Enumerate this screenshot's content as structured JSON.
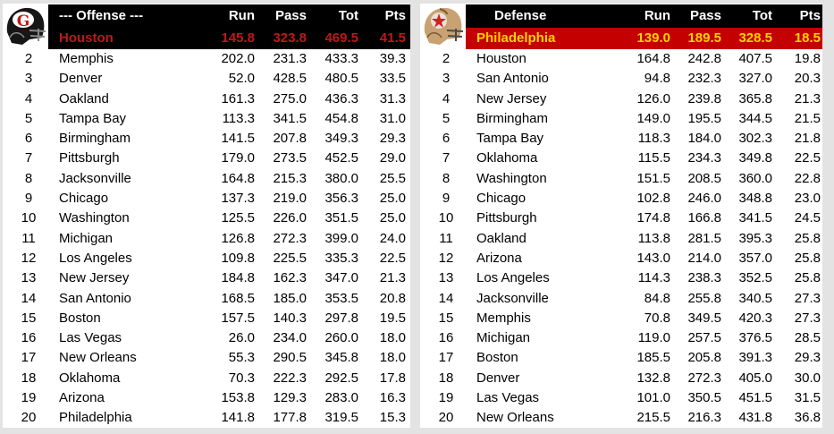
{
  "offense": {
    "header": {
      "title": "--- Offense ---",
      "run": "Run",
      "pass": "Pass",
      "tot": "Tot",
      "pts": "Pts"
    },
    "logo": {
      "icon": "gamblers-helmet-icon",
      "letter": "G",
      "color": "#c01818"
    },
    "leader": {
      "team": "Houston",
      "run": "145.8",
      "pass": "323.8",
      "tot": "469.5",
      "pts": "41.5"
    },
    "rows": [
      {
        "rank": "2",
        "team": "Memphis",
        "run": "202.0",
        "pass": "231.3",
        "tot": "433.3",
        "pts": "39.3"
      },
      {
        "rank": "3",
        "team": "Denver",
        "run": "52.0",
        "pass": "428.5",
        "tot": "480.5",
        "pts": "33.5"
      },
      {
        "rank": "4",
        "team": "Oakland",
        "run": "161.3",
        "pass": "275.0",
        "tot": "436.3",
        "pts": "31.3"
      },
      {
        "rank": "5",
        "team": "Tampa Bay",
        "run": "113.3",
        "pass": "341.5",
        "tot": "454.8",
        "pts": "31.0"
      },
      {
        "rank": "6",
        "team": "Birmingham",
        "run": "141.5",
        "pass": "207.8",
        "tot": "349.3",
        "pts": "29.3"
      },
      {
        "rank": "7",
        "team": "Pittsburgh",
        "run": "179.0",
        "pass": "273.5",
        "tot": "452.5",
        "pts": "29.0"
      },
      {
        "rank": "8",
        "team": "Jacksonville",
        "run": "164.8",
        "pass": "215.3",
        "tot": "380.0",
        "pts": "25.5"
      },
      {
        "rank": "9",
        "team": "Chicago",
        "run": "137.3",
        "pass": "219.0",
        "tot": "356.3",
        "pts": "25.0"
      },
      {
        "rank": "10",
        "team": "Washington",
        "run": "125.5",
        "pass": "226.0",
        "tot": "351.5",
        "pts": "25.0"
      },
      {
        "rank": "11",
        "team": "Michigan",
        "run": "126.8",
        "pass": "272.3",
        "tot": "399.0",
        "pts": "24.0"
      },
      {
        "rank": "12",
        "team": "Los Angeles",
        "run": "109.8",
        "pass": "225.5",
        "tot": "335.3",
        "pts": "22.5"
      },
      {
        "rank": "13",
        "team": "New Jersey",
        "run": "184.8",
        "pass": "162.3",
        "tot": "347.0",
        "pts": "21.3"
      },
      {
        "rank": "14",
        "team": "San Antonio",
        "run": "168.5",
        "pass": "185.0",
        "tot": "353.5",
        "pts": "20.8"
      },
      {
        "rank": "15",
        "team": "Boston",
        "run": "157.5",
        "pass": "140.3",
        "tot": "297.8",
        "pts": "19.5"
      },
      {
        "rank": "16",
        "team": "Las Vegas",
        "run": "26.0",
        "pass": "234.0",
        "tot": "260.0",
        "pts": "18.0"
      },
      {
        "rank": "17",
        "team": "New Orleans",
        "run": "55.3",
        "pass": "290.5",
        "tot": "345.8",
        "pts": "18.0"
      },
      {
        "rank": "18",
        "team": "Oklahoma",
        "run": "70.3",
        "pass": "222.3",
        "tot": "292.5",
        "pts": "17.8"
      },
      {
        "rank": "19",
        "team": "Arizona",
        "run": "153.8",
        "pass": "129.3",
        "tot": "283.0",
        "pts": "16.3"
      },
      {
        "rank": "20",
        "team": "Philadelphia",
        "run": "141.8",
        "pass": "177.8",
        "tot": "319.5",
        "pts": "15.3"
      }
    ]
  },
  "defense": {
    "header": {
      "title": "Defense",
      "run": "Run",
      "pass": "Pass",
      "tot": "Tot",
      "pts": "Pts"
    },
    "logo": {
      "icon": "stars-helmet-icon",
      "color": "#d42020"
    },
    "leader": {
      "team": "Philadelphia",
      "run": "139.0",
      "pass": "189.5",
      "tot": "328.5",
      "pts": "18.5"
    },
    "rows": [
      {
        "rank": "2",
        "team": "Houston",
        "run": "164.8",
        "pass": "242.8",
        "tot": "407.5",
        "pts": "19.8"
      },
      {
        "rank": "3",
        "team": "San Antonio",
        "run": "94.8",
        "pass": "232.3",
        "tot": "327.0",
        "pts": "20.3"
      },
      {
        "rank": "4",
        "team": "New Jersey",
        "run": "126.0",
        "pass": "239.8",
        "tot": "365.8",
        "pts": "21.3"
      },
      {
        "rank": "5",
        "team": "Birmingham",
        "run": "149.0",
        "pass": "195.5",
        "tot": "344.5",
        "pts": "21.5"
      },
      {
        "rank": "6",
        "team": "Tampa Bay",
        "run": "118.3",
        "pass": "184.0",
        "tot": "302.3",
        "pts": "21.8"
      },
      {
        "rank": "7",
        "team": "Oklahoma",
        "run": "115.5",
        "pass": "234.3",
        "tot": "349.8",
        "pts": "22.5"
      },
      {
        "rank": "8",
        "team": "Washington",
        "run": "151.5",
        "pass": "208.5",
        "tot": "360.0",
        "pts": "22.8"
      },
      {
        "rank": "9",
        "team": "Chicago",
        "run": "102.8",
        "pass": "246.0",
        "tot": "348.8",
        "pts": "23.0"
      },
      {
        "rank": "10",
        "team": "Pittsburgh",
        "run": "174.8",
        "pass": "166.8",
        "tot": "341.5",
        "pts": "24.5"
      },
      {
        "rank": "11",
        "team": "Oakland",
        "run": "113.8",
        "pass": "281.5",
        "tot": "395.3",
        "pts": "25.8"
      },
      {
        "rank": "12",
        "team": "Arizona",
        "run": "143.0",
        "pass": "214.0",
        "tot": "357.0",
        "pts": "25.8"
      },
      {
        "rank": "13",
        "team": "Los Angeles",
        "run": "114.3",
        "pass": "238.3",
        "tot": "352.5",
        "pts": "25.8"
      },
      {
        "rank": "14",
        "team": "Jacksonville",
        "run": "84.8",
        "pass": "255.8",
        "tot": "340.5",
        "pts": "27.3"
      },
      {
        "rank": "15",
        "team": "Memphis",
        "run": "70.8",
        "pass": "349.5",
        "tot": "420.3",
        "pts": "27.3"
      },
      {
        "rank": "16",
        "team": "Michigan",
        "run": "119.0",
        "pass": "257.5",
        "tot": "376.5",
        "pts": "28.5"
      },
      {
        "rank": "17",
        "team": "Boston",
        "run": "185.5",
        "pass": "205.8",
        "tot": "391.3",
        "pts": "29.3"
      },
      {
        "rank": "18",
        "team": "Denver",
        "run": "132.8",
        "pass": "272.3",
        "tot": "405.0",
        "pts": "30.0"
      },
      {
        "rank": "19",
        "team": "Las Vegas",
        "run": "101.0",
        "pass": "350.5",
        "tot": "451.5",
        "pts": "31.5"
      },
      {
        "rank": "20",
        "team": "New Orleans",
        "run": "215.5",
        "pass": "216.3",
        "tot": "431.8",
        "pts": "36.8"
      }
    ]
  }
}
